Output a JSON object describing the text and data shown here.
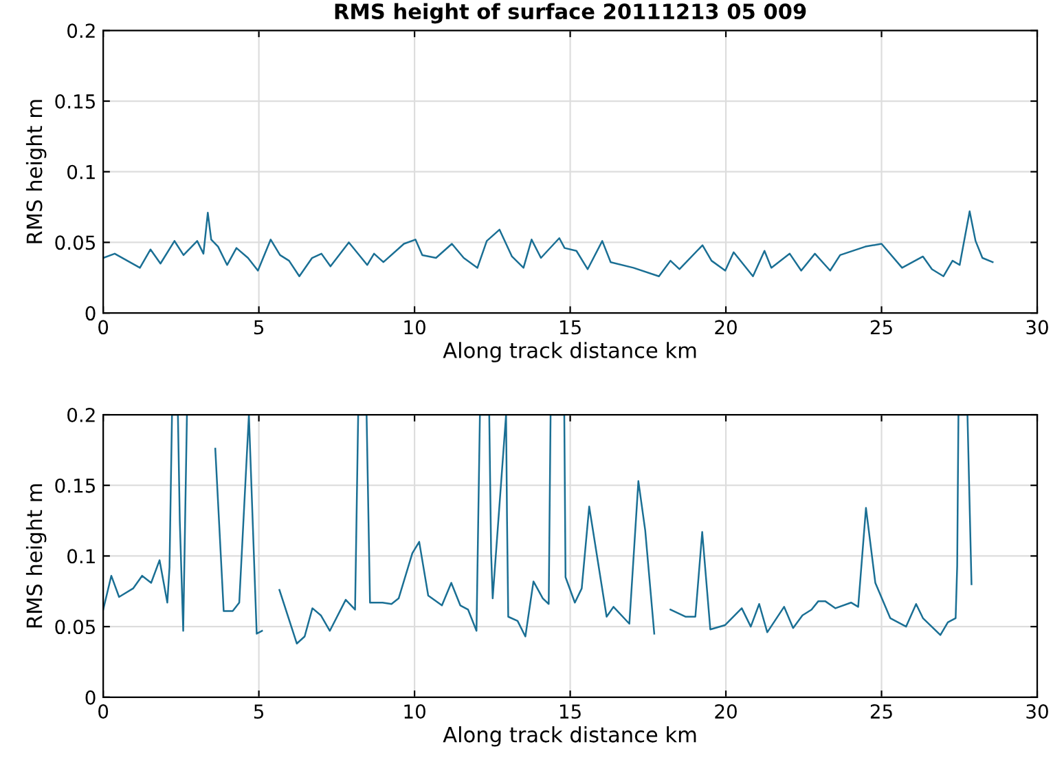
{
  "chart_data": [
    {
      "type": "line",
      "title": "RMS height of surface 20111213 05 009",
      "xlabel": "Along track distance km",
      "ylabel": "RMS height m",
      "x": [
        0.0,
        0.37,
        1.18,
        1.52,
        1.84,
        2.29,
        2.58,
        3.02,
        3.22,
        3.36,
        3.47,
        3.69,
        3.98,
        4.28,
        4.65,
        4.97,
        5.38,
        5.68,
        5.97,
        6.3,
        6.71,
        7.01,
        7.3,
        7.89,
        8.48,
        8.7,
        9.0,
        9.66,
        10.03,
        10.25,
        10.69,
        11.2,
        11.58,
        12.02,
        12.32,
        12.73,
        13.13,
        13.5,
        13.76,
        14.06,
        14.65,
        14.82,
        15.2,
        15.56,
        16.03,
        16.3,
        17.03,
        17.85,
        18.22,
        18.51,
        19.25,
        19.54,
        19.98,
        20.25,
        20.87,
        21.24,
        21.46,
        22.05,
        22.42,
        22.86,
        23.35,
        23.67,
        24.48,
        25.0,
        25.66,
        26.33,
        26.62,
        26.99,
        27.28,
        27.51,
        27.83,
        28.02,
        28.24,
        28.57
      ],
      "series": [
        {
          "color": "#1a6f94",
          "values": [
            0.039,
            0.042,
            0.032,
            0.045,
            0.035,
            0.051,
            0.041,
            0.051,
            0.042,
            0.071,
            0.052,
            0.047,
            0.034,
            0.046,
            0.039,
            0.03,
            0.052,
            0.041,
            0.037,
            0.026,
            0.039,
            0.042,
            0.033,
            0.05,
            0.034,
            0.042,
            0.036,
            0.049,
            0.052,
            0.041,
            0.039,
            0.049,
            0.039,
            0.032,
            0.051,
            0.059,
            0.04,
            0.032,
            0.052,
            0.039,
            0.053,
            0.046,
            0.044,
            0.031,
            0.051,
            0.036,
            0.032,
            0.026,
            0.037,
            0.031,
            0.048,
            0.037,
            0.03,
            0.043,
            0.026,
            0.044,
            0.032,
            0.042,
            0.03,
            0.042,
            0.03,
            0.041,
            0.047,
            0.049,
            0.032,
            0.04,
            0.031,
            0.026,
            0.037,
            0.034,
            0.072,
            0.051,
            0.039,
            0.036
          ]
        }
      ],
      "xlim": [
        0,
        30
      ],
      "ylim": [
        0,
        0.2
      ],
      "xticks": [
        0,
        5,
        10,
        15,
        20,
        25,
        30
      ],
      "yticks": [
        0,
        0.05,
        0.1,
        0.15,
        0.2
      ],
      "grid": true
    },
    {
      "type": "line",
      "xlabel": "Along track distance km",
      "ylabel": "RMS height m",
      "x": [
        0,
        0.26,
        0.51,
        0.96,
        1.25,
        1.54,
        1.81,
        2.06,
        2.13,
        2.21,
        2.4,
        2.46,
        2.57,
        2.69,
        3.1,
        3.6,
        3.87,
        4.16,
        4.37,
        4.68,
        4.93,
        5.1,
        5.4,
        5.66,
        6.22,
        6.47,
        6.72,
        6.99,
        7.28,
        7.79,
        8.09,
        8.19,
        8.46,
        8.57,
        8.97,
        9.26,
        9.49,
        9.93,
        10.15,
        10.44,
        10.88,
        11.18,
        11.47,
        11.72,
        11.99,
        12.1,
        12.4,
        12.46,
        12.51,
        12.94,
        12.97,
        13.01,
        13.31,
        13.56,
        13.82,
        14.12,
        14.31,
        14.37,
        14.81,
        14.85,
        15.15,
        15.37,
        15.61,
        16.17,
        16.39,
        16.9,
        17.19,
        17.41,
        17.7,
        18.0,
        18.22,
        18.7,
        19.02,
        19.24,
        19.5,
        19.97,
        20.51,
        20.8,
        21.07,
        21.33,
        21.87,
        22.16,
        22.46,
        22.75,
        22.97,
        23.19,
        23.52,
        24.02,
        24.25,
        24.5,
        24.8,
        25.28,
        25.79,
        26.11,
        26.33,
        26.89,
        27.13,
        27.38,
        27.43,
        27.47,
        27.76,
        27.89
      ],
      "series": [
        {
          "color": "#1a6f94",
          "values": [
            0.062,
            0.086,
            0.071,
            0.077,
            0.086,
            0.081,
            0.097,
            0.067,
            0.092,
            0.2,
            0.2,
            0.125,
            0.047,
            0.2,
            null,
            0.176,
            0.061,
            0.061,
            0.067,
            0.2,
            0.045,
            0.047,
            null,
            0.076,
            0.038,
            0.043,
            0.063,
            0.058,
            0.047,
            0.069,
            0.062,
            0.2,
            0.2,
            0.067,
            0.067,
            0.066,
            0.07,
            0.102,
            0.11,
            0.072,
            0.065,
            0.081,
            0.065,
            0.062,
            0.047,
            0.2,
            0.2,
            0.102,
            0.07,
            0.2,
            0.128,
            0.057,
            0.054,
            0.043,
            0.082,
            0.07,
            0.066,
            0.2,
            0.2,
            0.085,
            0.067,
            0.077,
            0.135,
            0.057,
            0.064,
            0.052,
            0.153,
            0.118,
            0.045,
            null,
            0.062,
            0.057,
            0.057,
            0.117,
            0.048,
            0.051,
            0.063,
            0.05,
            0.066,
            0.046,
            0.064,
            0.049,
            0.058,
            0.062,
            0.068,
            0.068,
            0.063,
            0.067,
            0.064,
            0.134,
            0.081,
            0.056,
            0.05,
            0.066,
            0.056,
            0.044,
            0.053,
            0.056,
            0.093,
            0.2,
            0.2,
            0.08
          ]
        }
      ],
      "xlim": [
        0,
        30
      ],
      "ylim": [
        0,
        0.2
      ],
      "xticks": [
        0,
        5,
        10,
        15,
        20,
        25,
        30
      ],
      "yticks": [
        0,
        0.05,
        0.1,
        0.15,
        0.2
      ],
      "grid": true
    }
  ]
}
